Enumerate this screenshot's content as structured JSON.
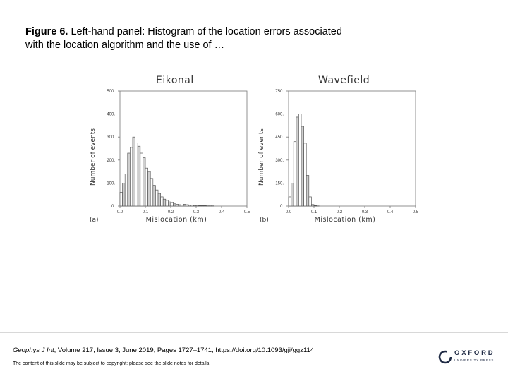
{
  "caption": {
    "label": "Figure 6.",
    "text": " Left-hand panel: Histogram of the location errors associated with the location algorithm and the use of …"
  },
  "footer": {
    "journal": "Geophys J Int",
    "details": ", Volume 217, Issue 3, June 2019, Pages 1727–1741, ",
    "doi": "https://doi.org/10.1093/gji/ggz114",
    "copyright": "The content of this slide may be subject to copyright: please see the slide notes for details."
  },
  "logo": {
    "word": "OXFORD",
    "sub": "UNIVERSITY PRESS"
  },
  "chart_data": [
    {
      "type": "bar",
      "panel": "(a)",
      "title": "Eikonal",
      "xlabel": "Mislocation (km)",
      "ylabel": "Number of events",
      "xlim": [
        0.0,
        0.5
      ],
      "ylim": [
        0,
        500
      ],
      "xticks": [
        "0.0",
        "0.1",
        "0.2",
        "0.3",
        "0.4",
        "0.5"
      ],
      "yticks": [
        "0.",
        "100.",
        "200.",
        "300.",
        "400.",
        "500."
      ],
      "bin_width": 0.01,
      "bin_start": 0.0,
      "values": [
        60,
        100,
        140,
        230,
        255,
        300,
        275,
        260,
        230,
        210,
        165,
        150,
        120,
        90,
        70,
        55,
        40,
        30,
        25,
        18,
        15,
        10,
        8,
        6,
        5,
        8,
        6,
        5,
        4,
        3,
        3,
        2,
        2,
        2,
        1,
        1,
        1,
        0,
        0,
        0
      ]
    },
    {
      "type": "bar",
      "panel": "(b)",
      "title": "Wavefield",
      "xlabel": "Mislocation (km)",
      "ylabel": "Number of events",
      "xlim": [
        0.0,
        0.5
      ],
      "ylim": [
        0,
        750
      ],
      "xticks": [
        "0.0",
        "0.1",
        "0.2",
        "0.3",
        "0.4",
        "0.5"
      ],
      "yticks": [
        "0.",
        "150.",
        "300.",
        "450.",
        "600.",
        "750."
      ],
      "bin_width": 0.01,
      "bin_start": 0.0,
      "values": [
        60,
        150,
        420,
        580,
        600,
        520,
        410,
        200,
        60,
        10,
        3,
        1,
        0,
        0,
        0,
        0
      ]
    }
  ]
}
